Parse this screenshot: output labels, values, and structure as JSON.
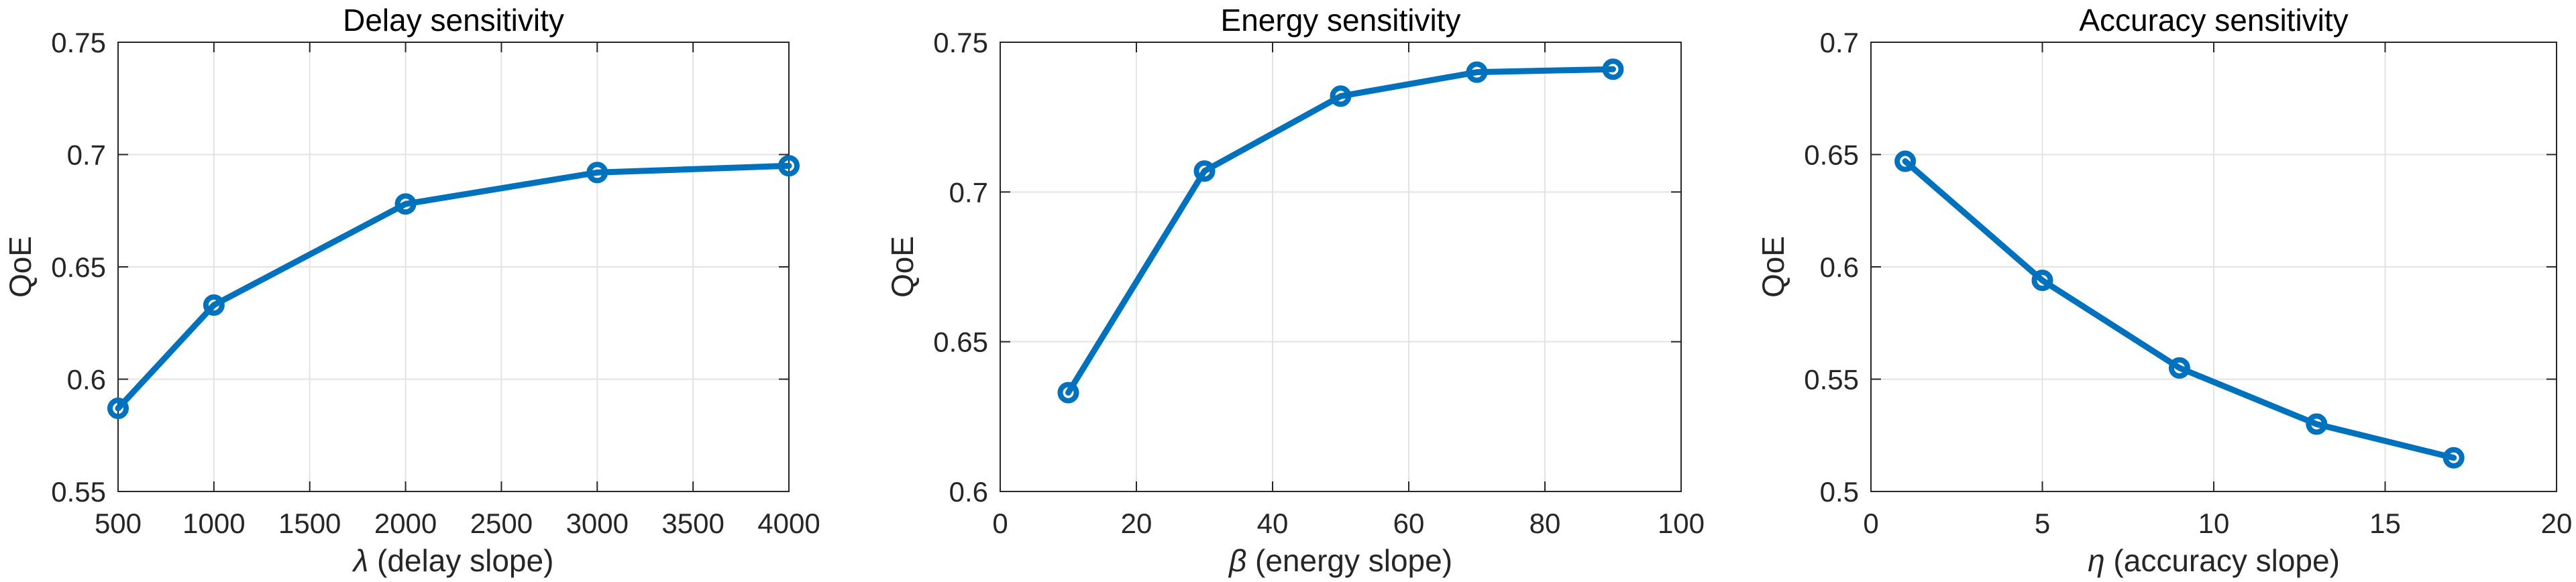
{
  "figure": {
    "background": "#ffffff",
    "panel_count": 3
  },
  "style": {
    "line_color": "#0072bd",
    "axis_color": "#262626",
    "grid_color": "#e3e3e3",
    "title_color": "#000000",
    "plot_background": "#ffffff"
  },
  "chart_data": [
    {
      "type": "line",
      "title": "Delay sensitivity",
      "xlabel_symbol": "λ",
      "xlabel_text": " (delay slope)",
      "ylabel": "QoE",
      "x": [
        500,
        1000,
        2000,
        3000,
        4000
      ],
      "y": [
        0.587,
        0.633,
        0.678,
        0.692,
        0.695
      ],
      "xlim": [
        500,
        4000
      ],
      "ylim": [
        0.55,
        0.75
      ],
      "xticks": [
        500,
        1000,
        1500,
        2000,
        2500,
        3000,
        3500,
        4000
      ],
      "xtick_labels": [
        "500",
        "1000",
        "1500",
        "2000",
        "2500",
        "3000",
        "3500",
        "4000"
      ],
      "yticks": [
        0.55,
        0.6,
        0.65,
        0.7,
        0.75
      ],
      "ytick_labels": [
        "0.55",
        "0.6",
        "0.65",
        "0.7",
        "0.75"
      ],
      "line_color": "#0072bd",
      "marker": "open-circle",
      "grid": true,
      "legend": "none"
    },
    {
      "type": "line",
      "title": "Energy sensitivity",
      "xlabel_symbol": "β",
      "xlabel_text": " (energy slope)",
      "ylabel": "QoE",
      "x": [
        10,
        30,
        50,
        70,
        90
      ],
      "y": [
        0.633,
        0.707,
        0.732,
        0.74,
        0.741
      ],
      "xlim": [
        0,
        100
      ],
      "ylim": [
        0.6,
        0.75
      ],
      "xticks": [
        0,
        20,
        40,
        60,
        80,
        100
      ],
      "xtick_labels": [
        "0",
        "20",
        "40",
        "60",
        "80",
        "100"
      ],
      "yticks": [
        0.6,
        0.65,
        0.7,
        0.75
      ],
      "ytick_labels": [
        "0.6",
        "0.65",
        "0.7",
        "0.75"
      ],
      "line_color": "#0072bd",
      "marker": "open-circle",
      "grid": true,
      "legend": "none"
    },
    {
      "type": "line",
      "title": "Accuracy sensitivity",
      "xlabel_symbol": "η",
      "xlabel_text": " (accuracy slope)",
      "ylabel": "QoE",
      "x": [
        1,
        5,
        9,
        13,
        17
      ],
      "y": [
        0.647,
        0.594,
        0.555,
        0.53,
        0.515
      ],
      "xlim": [
        0,
        20
      ],
      "ylim": [
        0.5,
        0.7
      ],
      "xticks": [
        0,
        5,
        10,
        15,
        20
      ],
      "xtick_labels": [
        "0",
        "5",
        "10",
        "15",
        "20"
      ],
      "yticks": [
        0.5,
        0.55,
        0.6,
        0.65,
        0.7
      ],
      "ytick_labels": [
        "0.5",
        "0.55",
        "0.6",
        "0.65",
        "0.7"
      ],
      "line_color": "#0072bd",
      "marker": "open-circle",
      "grid": true,
      "legend": "none"
    }
  ]
}
